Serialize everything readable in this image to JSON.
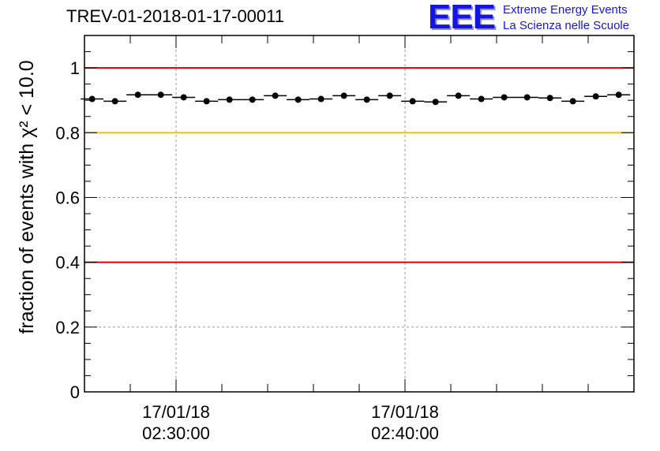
{
  "header": {
    "title": "TREV-01-2018-01-17-00011",
    "logo": {
      "mark": "EEE",
      "line1": "Extreme Energy Events",
      "line2": "La Scienza nelle Scuole"
    }
  },
  "chart_data": {
    "type": "scatter",
    "title": "TREV-01-2018-01-17-00011",
    "ylabel": "fraction of events with χ² < 10.0",
    "ylim": [
      0,
      1.1
    ],
    "xlim": [
      "2018-01-17 02:26:00",
      "2018-01-17 02:50:00"
    ],
    "x_tick_labels": [
      {
        "date": "17/01/18",
        "time": "02:30:00"
      },
      {
        "date": "17/01/18",
        "time": "02:40:00"
      }
    ],
    "y_ticks": [
      0,
      0.2,
      0.4,
      0.6,
      0.8,
      1
    ],
    "y_tick_labels": [
      "0",
      "0.2",
      "0.4",
      "0.6",
      "0.8",
      "1"
    ],
    "grid": true,
    "reference_lines": [
      {
        "y": 1.0,
        "color": "#e00000"
      },
      {
        "y": 0.8,
        "color": "#ffc000"
      },
      {
        "y": 0.4,
        "color": "#e00000"
      }
    ],
    "series": [
      {
        "color": "#000000",
        "x": [
          "02:26:20",
          "02:27:20",
          "02:28:20",
          "02:29:20",
          "02:30:20",
          "02:31:20",
          "02:32:20",
          "02:33:20",
          "02:34:20",
          "02:35:20",
          "02:36:20",
          "02:37:20",
          "02:38:20",
          "02:39:20",
          "02:40:20",
          "02:41:20",
          "02:42:20",
          "02:43:20",
          "02:44:20",
          "02:45:20",
          "02:46:20",
          "02:47:20",
          "02:48:20",
          "02:49:20"
        ],
        "values": [
          0.904,
          0.897,
          0.917,
          0.917,
          0.909,
          0.897,
          0.902,
          0.902,
          0.914,
          0.902,
          0.904,
          0.914,
          0.902,
          0.914,
          0.897,
          0.895,
          0.914,
          0.904,
          0.909,
          0.909,
          0.907,
          0.897,
          0.912,
          0.917
        ]
      }
    ]
  }
}
